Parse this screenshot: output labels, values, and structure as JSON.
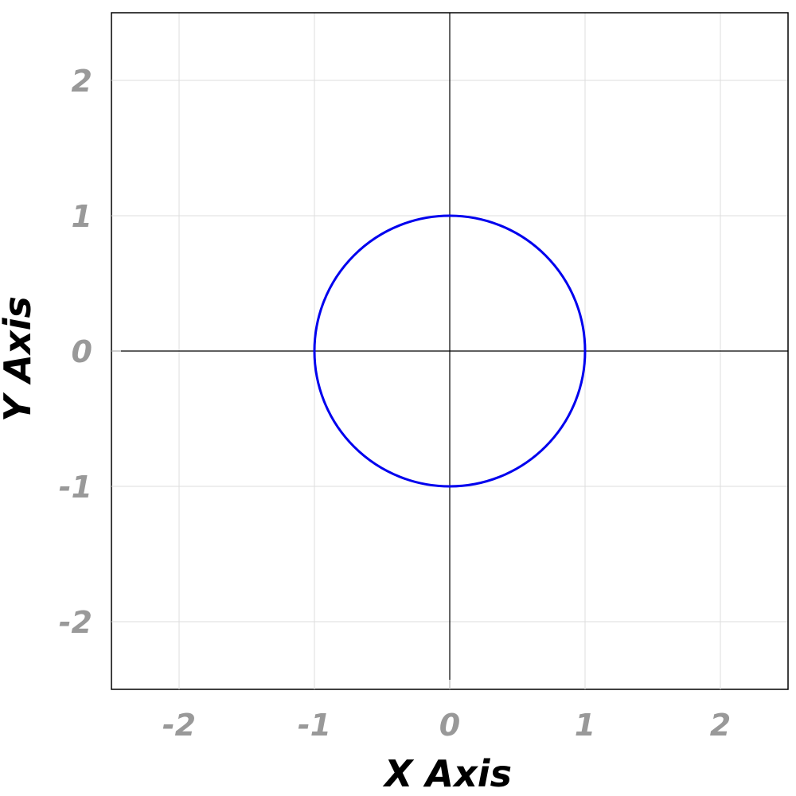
{
  "chart_data": {
    "type": "line",
    "title": "",
    "xlabel": "X Axis",
    "ylabel": "Y Axis",
    "xlim": [
      -2.5,
      2.5
    ],
    "ylim": [
      -2.5,
      2.5
    ],
    "grid": true,
    "x_ticks": [
      -2,
      -1,
      0,
      1,
      2
    ],
    "y_ticks": [
      -2,
      -1,
      0,
      1,
      2
    ],
    "x_tick_labels": [
      "-2",
      "-1",
      "0",
      "1",
      "2"
    ],
    "y_tick_labels": [
      "-2",
      "-1",
      "0",
      "1",
      "2"
    ],
    "zero_lines": true,
    "series": [
      {
        "shape": "circle",
        "center": [
          0,
          0
        ],
        "radius": 1,
        "color": "#0000ee"
      }
    ]
  },
  "colors": {
    "grid": "#dddddd",
    "axis": "#000000",
    "tick_label": "#999999",
    "curve": "#0000ee"
  }
}
